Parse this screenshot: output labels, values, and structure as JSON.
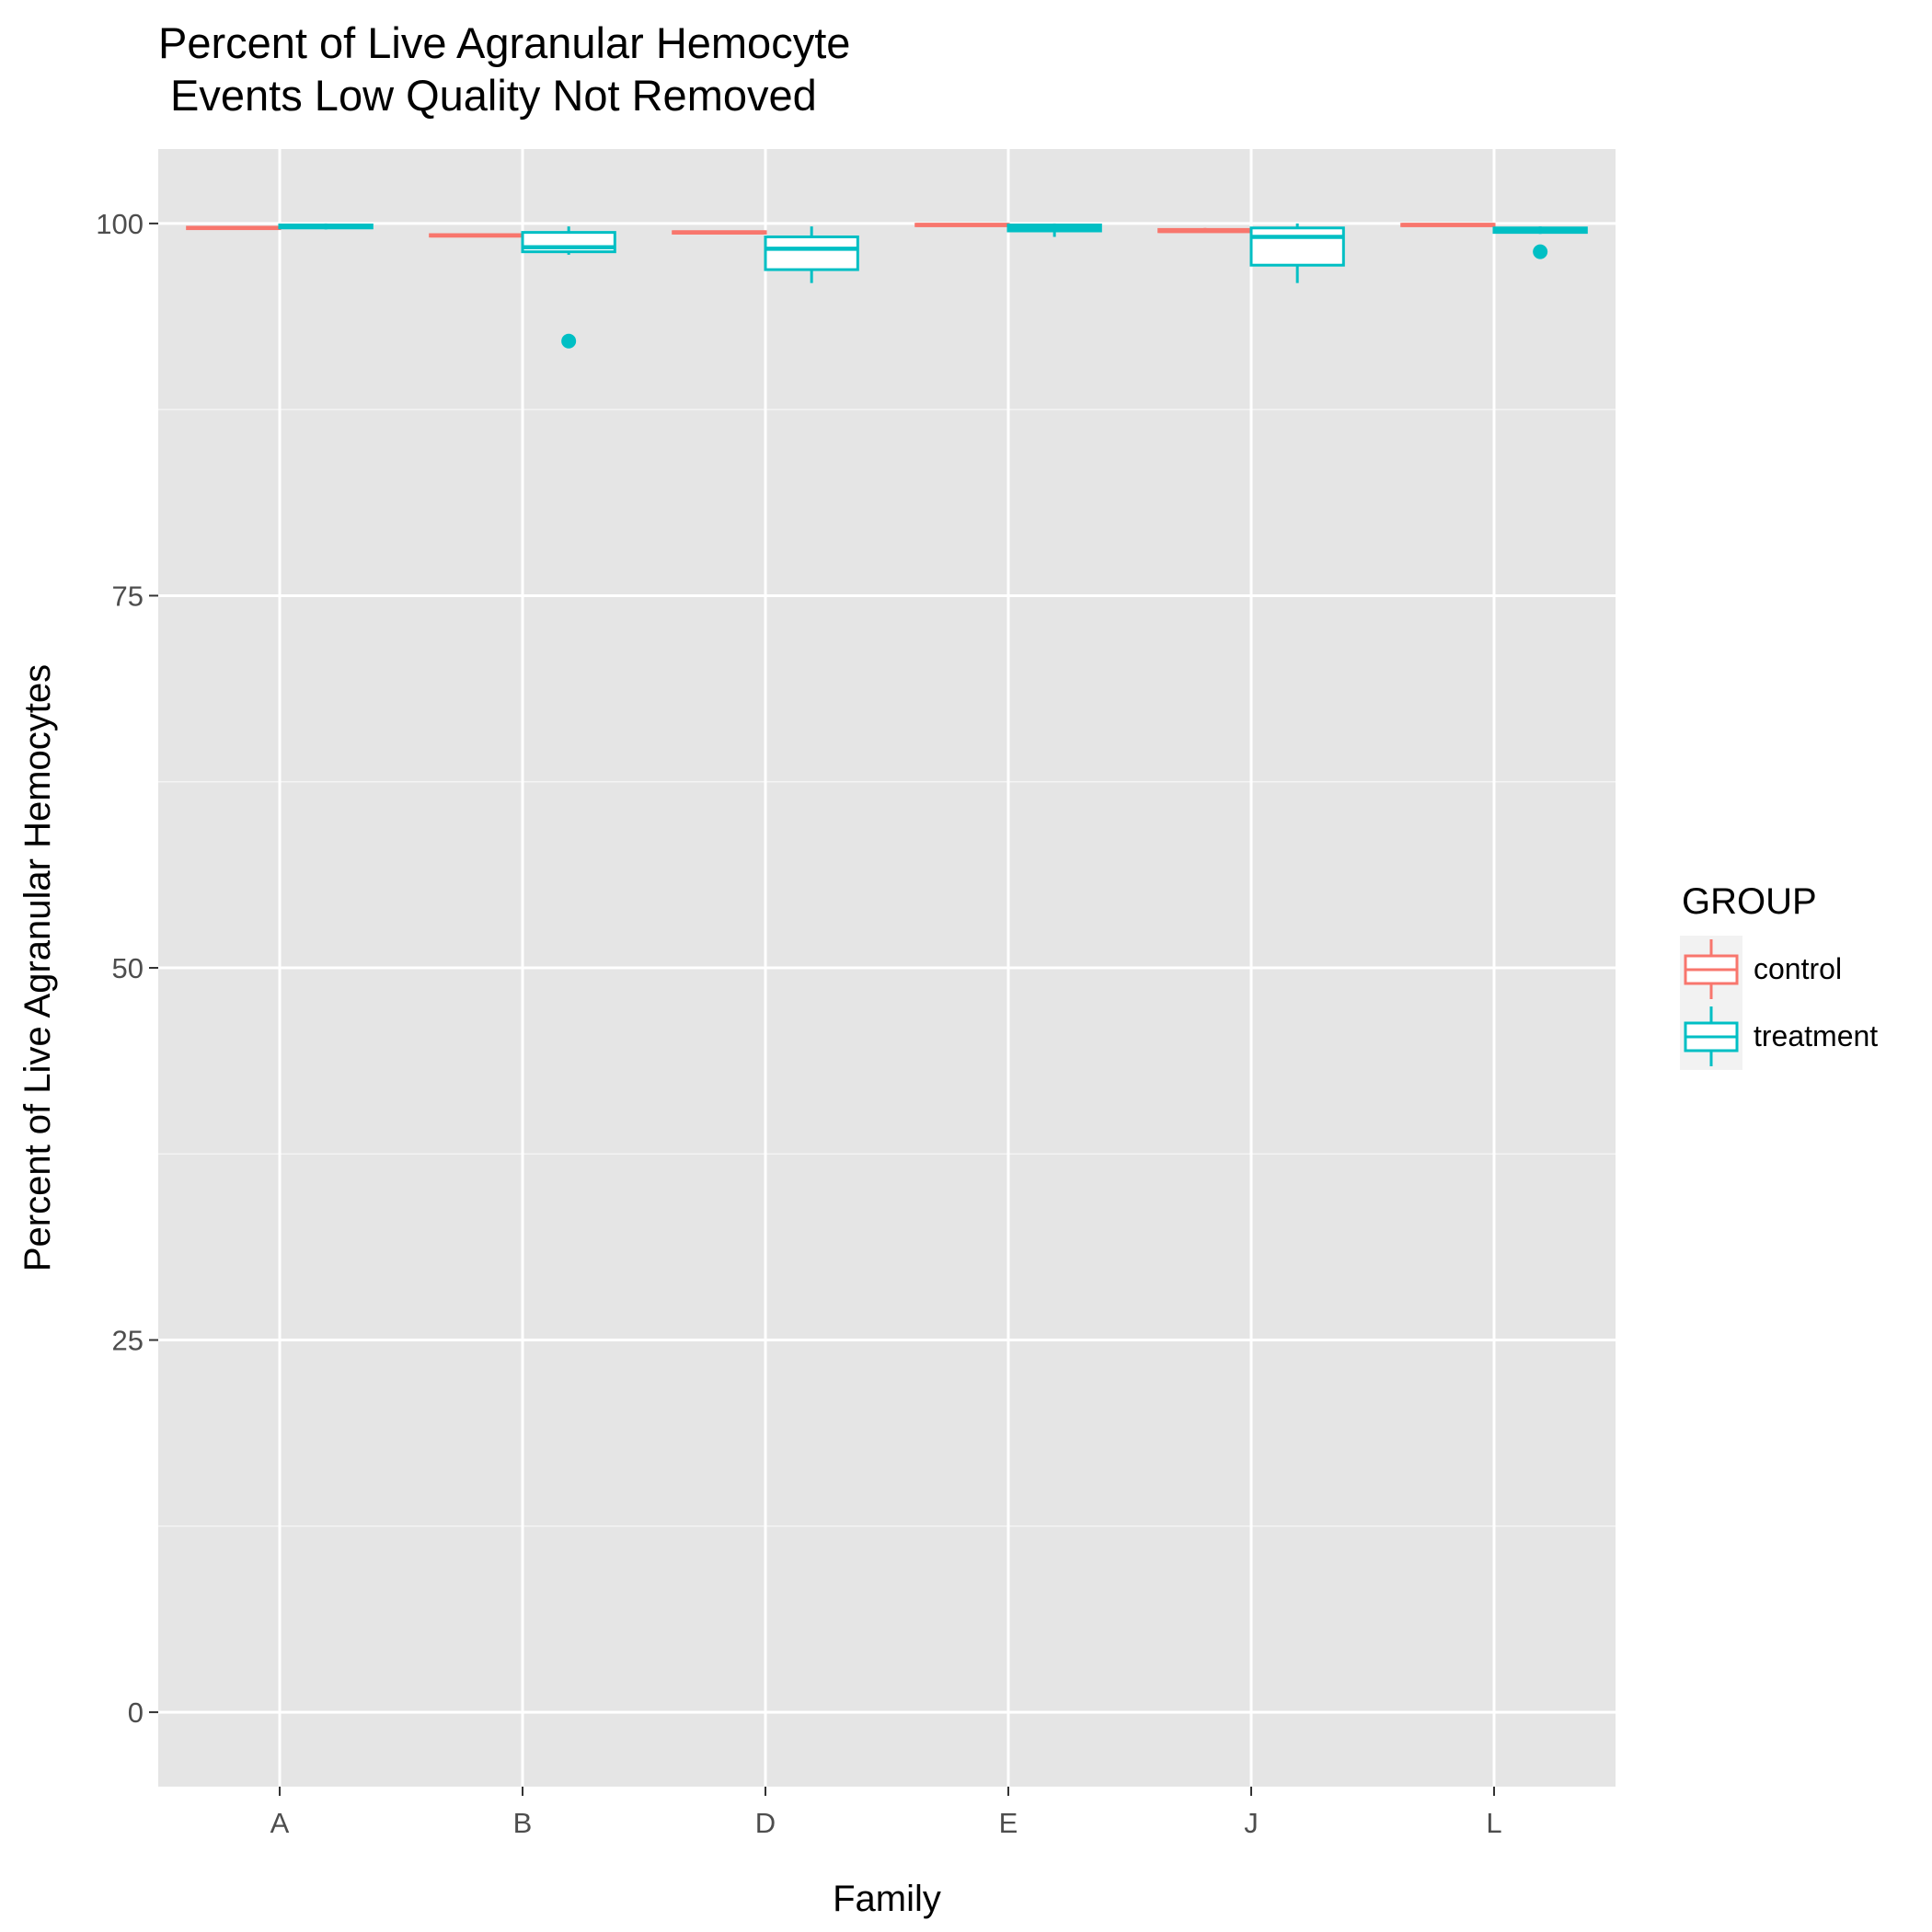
{
  "chart_data": {
    "type": "boxplot",
    "title": "Percent of Live Agranular Hemocyte\n Events Low Quality Not Removed",
    "xlabel": "Family",
    "ylabel": "Percent of Live Agranular Hemocytes",
    "categories": [
      "A",
      "B",
      "D",
      "E",
      "J",
      "L"
    ],
    "yticks": [
      0,
      25,
      50,
      75,
      100
    ],
    "ylim": [
      -5,
      105
    ],
    "grid": true,
    "legend": {
      "title": "GROUP",
      "position": "right",
      "entries": [
        {
          "name": "control",
          "color": "#F8766D"
        },
        {
          "name": "treatment",
          "color": "#00BFC4"
        }
      ]
    },
    "series": [
      {
        "name": "control",
        "color": "#F8766D",
        "boxes": [
          {
            "category": "A",
            "min": 99.6,
            "q1": 99.65,
            "median": 99.7,
            "q3": 99.75,
            "max": 99.8,
            "outliers": []
          },
          {
            "category": "B",
            "min": 99.1,
            "q1": 99.15,
            "median": 99.2,
            "q3": 99.25,
            "max": 99.3,
            "outliers": []
          },
          {
            "category": "D",
            "min": 99.3,
            "q1": 99.35,
            "median": 99.4,
            "q3": 99.45,
            "max": 99.5,
            "outliers": []
          },
          {
            "category": "E",
            "min": 99.8,
            "q1": 99.85,
            "median": 99.9,
            "q3": 99.95,
            "max": 100.0,
            "outliers": []
          },
          {
            "category": "J",
            "min": 99.4,
            "q1": 99.45,
            "median": 99.5,
            "q3": 99.6,
            "max": 99.7,
            "outliers": []
          },
          {
            "category": "L",
            "min": 99.8,
            "q1": 99.85,
            "median": 99.9,
            "q3": 99.95,
            "max": 100.0,
            "outliers": []
          }
        ]
      },
      {
        "name": "treatment",
        "color": "#00BFC4",
        "boxes": [
          {
            "category": "A",
            "min": 99.6,
            "q1": 99.7,
            "median": 99.8,
            "q3": 99.9,
            "max": 100.0,
            "outliers": []
          },
          {
            "category": "B",
            "min": 97.9,
            "q1": 98.1,
            "median": 98.4,
            "q3": 99.4,
            "max": 99.8,
            "outliers": [
              92.1
            ]
          },
          {
            "category": "D",
            "min": 96.0,
            "q1": 96.9,
            "median": 98.3,
            "q3": 99.1,
            "max": 99.8,
            "outliers": []
          },
          {
            "category": "E",
            "min": 99.1,
            "q1": 99.5,
            "median": 99.7,
            "q3": 99.9,
            "max": 100.0,
            "outliers": []
          },
          {
            "category": "J",
            "min": 96.0,
            "q1": 97.2,
            "median": 99.1,
            "q3": 99.7,
            "max": 100.0,
            "outliers": []
          },
          {
            "category": "L",
            "min": 99.3,
            "q1": 99.4,
            "median": 99.5,
            "q3": 99.7,
            "max": 99.8,
            "outliers": [
              98.1
            ]
          }
        ]
      }
    ]
  }
}
